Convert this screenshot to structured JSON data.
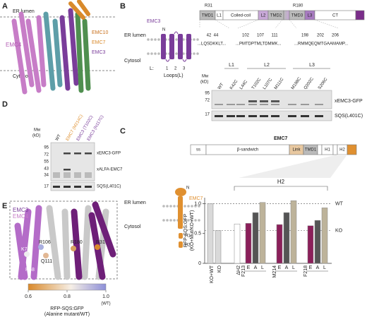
{
  "panels": {
    "a": {
      "label": "A",
      "er_lumen": "ER lumen",
      "cytosol": "Cytosol",
      "subunits": [
        "EMC4",
        "EMC10",
        "EMC7",
        "EMC3"
      ]
    },
    "b": {
      "label": "B",
      "protein": "EMC3",
      "er_lumen": "ER lumen",
      "cytosol": "Cytosol",
      "n_term": "N",
      "loops_prefix": "L:",
      "loops": [
        "1",
        "2",
        "3"
      ],
      "loops_caption": "Loops(L)",
      "domains": [
        "TMD1",
        "L1",
        "Coiled-coil",
        "L2",
        "TMD2",
        "TMD3",
        "L3",
        "CT"
      ],
      "residues_top": [
        "R31",
        "R180"
      ],
      "positions": [
        "42",
        "44",
        "102",
        "107",
        "111",
        "198",
        "202",
        "206"
      ],
      "sequences": [
        "...LQSDKKLT...",
        "...PMTDPTMLTDMMK...",
        "...RMMQEQMTGAAMAMP..."
      ],
      "gel": {
        "mw_label": [
          "Mw",
          "(kD)"
        ],
        "mw": [
          "95",
          "72",
          "17"
        ],
        "lanes": [
          "WT",
          "K42C",
          "L44C",
          "T102C",
          "L107C",
          "M111C",
          "M198C",
          "Q202C",
          "S206C"
        ],
        "groups": [
          "L1",
          "L2",
          "L3"
        ],
        "bands": [
          "xEMC3-GFP",
          "SQS(L401C)"
        ]
      }
    },
    "c": {
      "label": "C",
      "protein": "EMC7",
      "domains": [
        "ss",
        "β-sandwich",
        "Link",
        "TMD1",
        "H1",
        "H2"
      ],
      "er_lumen": "ER lumen",
      "cytosol": "Cytosol",
      "n_term": "N",
      "helices": [
        "H1",
        "H2"
      ]
    },
    "d": {
      "label": "D",
      "mw_label": [
        "Mw",
        "(kD)"
      ],
      "mw": [
        "95",
        "72",
        "55",
        "43",
        "34",
        "17"
      ],
      "lanes": [
        "WT",
        "EMC7 (M214C)",
        "EMC3 (T102C)",
        "EMC3 (N117C)"
      ],
      "bands": [
        "xEMC3-GFP",
        "xALFA-EMC7",
        "SQS(L401C)"
      ]
    },
    "e": {
      "label": "E",
      "subunits": [
        "EMC3",
        "EMC4"
      ],
      "residues": [
        "K78",
        "R106",
        "R180",
        "R31",
        "Q111",
        "R68"
      ],
      "colorbar": {
        "lim": [
          0.6,
          1.0
        ],
        "ticks": [
          0.6,
          0.8,
          {
            "value": 1,
            "label": "1.0"
          }
        ],
        "wt": "(WT)",
        "title": "RFP-SQS:GFP",
        "subtitle": "(Alanine mutant/WT)"
      }
    }
  },
  "chart_data": {
    "type": "bar",
    "y_label": [
      "RFP-SQS:GFP",
      "(KO+Mut/KO+WT)"
    ],
    "categories": [
      "KO+WT",
      "KO",
      "ΔH2",
      "E",
      "A",
      "L",
      "E",
      "A",
      "L",
      "E",
      "A",
      "L"
    ],
    "values": [
      1.0,
      0.55,
      0.66,
      0.67,
      0.85,
      1.02,
      0.65,
      0.85,
      1.05,
      0.63,
      0.72,
      0.93
    ],
    "colors": [
      "#d9d9d9",
      "#d9d9d9",
      "#ffffff",
      "#8b1f5a",
      "#555555",
      "#bdb39a",
      "#8b1f5a",
      "#555555",
      "#bdb39a",
      "#8b1f5a",
      "#555555",
      "#bdb39a"
    ],
    "group_labels": [
      "F213",
      "M214",
      "F218"
    ],
    "bracket_label": "H2",
    "reference_lines": [
      {
        "value": 1.0,
        "label": "WT"
      },
      {
        "value": 0.55,
        "label": "KO"
      }
    ],
    "ylim": [
      0,
      1.1
    ],
    "yticks": [
      0,
      0.5,
      {
        "value": 1,
        "label": "1.0"
      }
    ]
  }
}
